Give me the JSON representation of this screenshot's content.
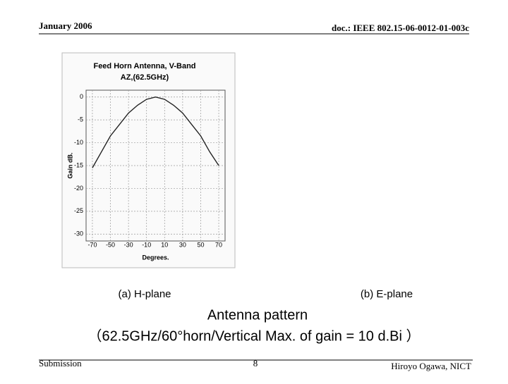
{
  "header": {
    "date": "January 2006",
    "doc": "doc.: IEEE 802.15-06-0012-01-003c"
  },
  "chart_data": {
    "type": "line",
    "title": "Feed Horn Antenna, V-Band",
    "subtitle": "AZ,(62.5GHz)",
    "x_label": "Degrees.",
    "y_label": "Gain dB.",
    "x": [
      -70,
      -60,
      -50,
      -40,
      -30,
      -20,
      -10,
      0,
      10,
      20,
      30,
      40,
      50,
      60,
      70
    ],
    "series": [
      {
        "color": "#222222",
        "values": [
          -15.5,
          -12,
          -8.5,
          -6,
          -3.5,
          -1.8,
          -0.5,
          0,
          -0.5,
          -1.8,
          -3.5,
          -6,
          -8.5,
          -12,
          -15
        ]
      }
    ],
    "xlim": [
      -77,
      77
    ],
    "xticks": [
      -70,
      -50,
      -30,
      -10,
      10,
      30,
      50,
      70
    ],
    "ylim": [
      -31.5,
      1.5
    ],
    "yticks": [
      0,
      -5,
      -10,
      -15,
      -20,
      -25,
      -30
    ],
    "grid": true
  },
  "captions": {
    "a": "(a) H-plane",
    "b": "(b) E-plane",
    "main": "Antenna pattern",
    "detail": "（62.5GHz/60°horn/Vertical Max. of gain = 10 d.Bi ）"
  },
  "footer": {
    "left": "Submission",
    "page": "8",
    "right": "Hiroyo Ogawa, NICT"
  }
}
